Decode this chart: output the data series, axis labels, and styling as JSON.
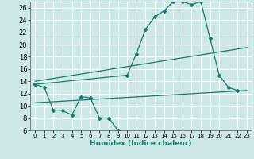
{
  "xlabel": "Humidex (Indice chaleur)",
  "bg_color": "#cce8e8",
  "grid_color": "#ffffff",
  "line_color": "#1a7a6e",
  "xlim": [
    -0.5,
    23.5
  ],
  "ylim": [
    6,
    27
  ],
  "xticks": [
    0,
    1,
    2,
    3,
    4,
    5,
    6,
    7,
    8,
    9,
    10,
    11,
    12,
    13,
    14,
    15,
    16,
    17,
    18,
    19,
    20,
    21,
    22,
    23
  ],
  "yticks": [
    6,
    8,
    10,
    12,
    14,
    16,
    18,
    20,
    22,
    24,
    26
  ],
  "series1_x": [
    0,
    1,
    2,
    3,
    4,
    5,
    6,
    7,
    8,
    9
  ],
  "series1_y": [
    13.5,
    13.0,
    9.2,
    9.2,
    8.5,
    11.5,
    11.3,
    8.0,
    8.0,
    6.0
  ],
  "series2_x": [
    0,
    10,
    11,
    12,
    13,
    14,
    15,
    16,
    17,
    18,
    19,
    20,
    21,
    22
  ],
  "series2_y": [
    13.5,
    15.0,
    18.5,
    22.5,
    24.5,
    25.5,
    27.0,
    27.0,
    26.5,
    27.0,
    21.0,
    15.0,
    13.0,
    12.5
  ],
  "series3_x": [
    0,
    23
  ],
  "series3_y": [
    14.0,
    19.5
  ],
  "series4_x": [
    0,
    23
  ],
  "series4_y": [
    10.5,
    12.5
  ]
}
